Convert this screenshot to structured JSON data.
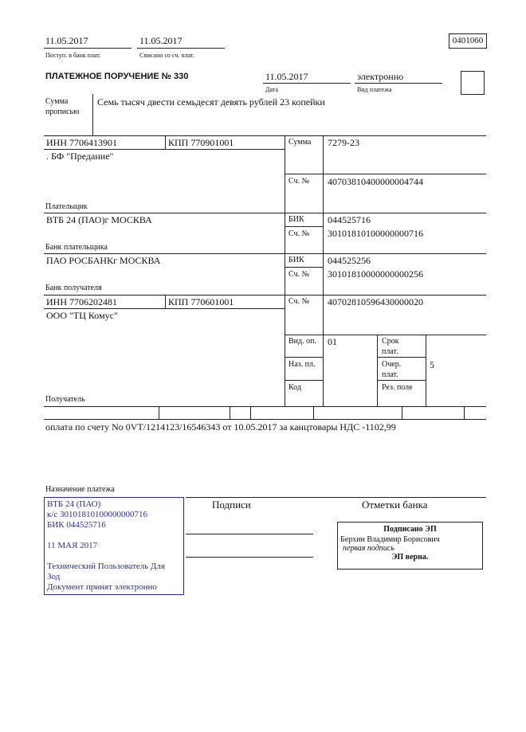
{
  "header": {
    "received_date": "11.05.2017",
    "received_label": "Поступ. в банк плат.",
    "debited_date": "11.05.2017",
    "debited_label": "Списано со сч. плат.",
    "form_code": "0401060"
  },
  "title": "ПЛАТЕЖНОЕ ПОРУЧЕНИЕ № 330",
  "date": "11.05.2017",
  "date_label": "Дата",
  "payment_type": "электронно",
  "payment_type_label": "Вид платежа",
  "amount_words_label_1": "Сумма",
  "amount_words_label_2": "прописью",
  "amount_words": "Семь тысяч двести семьдесят девять рублей 23 копейки",
  "payer": {
    "inn": "ИНН 7706413901",
    "kpp": "КПП 770901001",
    "name": ". БФ \"Предание\"",
    "label": "Плательщик",
    "sum_label": "Сумма",
    "sum": "7279-23",
    "account_label": "Сч. №",
    "account": "40703810400000004744"
  },
  "payer_bank": {
    "name": "ВТБ 24 (ПАО)г МОСКВА",
    "label": "Банк плательщика",
    "bik_label": "БИК",
    "bik": "044525716",
    "account_label": "Сч. №",
    "account": "30101810100000000716"
  },
  "recipient_bank": {
    "name": "ПАО РОСБАНКг МОСКВА",
    "label": "Банк получателя",
    "bik_label": "БИК",
    "bik": "044525256",
    "account_label": "Сч. №",
    "account": "30101810000000000256"
  },
  "recipient": {
    "inn": "ИНН 7706202481",
    "kpp": "КПП 770601001",
    "name": "ООО \"ТЦ Комус\"",
    "label": "Получатель",
    "account_label": "Сч. №",
    "account": "40702810596430000020"
  },
  "codes": {
    "op_type_label": "Вид. оп.",
    "op_type": "01",
    "purpose_code_label": "Наз. пл.",
    "code_label": "Код",
    "term_label_1": "Срок",
    "term_label_2": "плат.",
    "priority_label_1": "Очер.",
    "priority_label_2": "плат.",
    "priority": "5",
    "reserved_label": "Рез. поле"
  },
  "purpose": "оплата по счету No 0VT/1214123/16546343 от 10.05.2017 за канцтовары НДС -1102,99",
  "purpose_label": "Назначение платежа",
  "signatures_label": "Подписи",
  "bank_marks_label": "Отметки банка",
  "bank_stamp": {
    "color": "#2a2aa8",
    "lines": [
      "ВТБ 24 (ПАО)",
      "к/с 30101810100000000716",
      "БИК 044525716",
      "",
      "11 МАЯ 2017",
      "",
      "Технический Пользователь Для",
      "Зод",
      "Документ принят электронно"
    ]
  },
  "e_signature": {
    "title": "Подписано ЭП",
    "signer": "Берхин Владимир Борисович",
    "role": "первая подпись",
    "status": "ЭП верна."
  }
}
